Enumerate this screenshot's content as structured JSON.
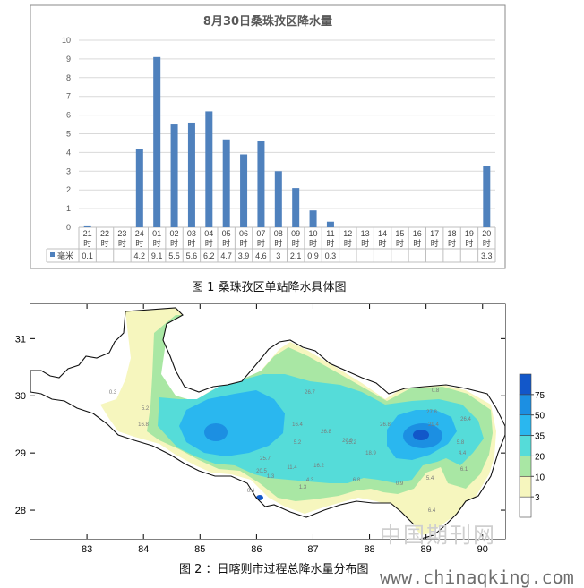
{
  "chart_data": [
    {
      "type": "bar",
      "title": "8月30日桑珠孜区降水量",
      "categories": [
        [
          "21",
          "时"
        ],
        [
          "22",
          "时"
        ],
        [
          "23",
          "时"
        ],
        [
          "24",
          "时"
        ],
        [
          "01",
          "时"
        ],
        [
          "02",
          "时"
        ],
        [
          "03",
          "时"
        ],
        [
          "04",
          "时"
        ],
        [
          "05",
          "时"
        ],
        [
          "06",
          "时"
        ],
        [
          "07",
          "时"
        ],
        [
          "08",
          "时"
        ],
        [
          "09",
          "时"
        ],
        [
          "10",
          "时"
        ],
        [
          "11",
          "时"
        ],
        [
          "12",
          "时"
        ],
        [
          "13",
          "时"
        ],
        [
          "14",
          "时"
        ],
        [
          "15",
          "时"
        ],
        [
          "16",
          "时"
        ],
        [
          "17",
          "时"
        ],
        [
          "18",
          "时"
        ],
        [
          "19",
          "时"
        ],
        [
          "20",
          "时"
        ]
      ],
      "series": [
        {
          "name": "毫米",
          "color": "#4f81bd",
          "values": [
            0.1,
            0,
            0,
            4.2,
            9.1,
            5.5,
            5.6,
            6.2,
            4.7,
            3.9,
            4.6,
            3,
            2.1,
            0.9,
            0.3,
            0,
            0,
            0,
            0,
            0,
            0,
            0,
            0,
            3.3
          ]
        }
      ],
      "table_values": [
        "0.1",
        "",
        "",
        "4.2",
        "9.1",
        "5.5",
        "5.6",
        "6.2",
        "4.7",
        "3.9",
        "4.6",
        "3",
        "2.1",
        "0.9",
        "0.3",
        "",
        "",
        "",
        "",
        "",
        "",
        "",
        "",
        "3.3"
      ],
      "ylim": [
        0,
        10
      ],
      "yticks": [
        "0",
        "1",
        "2",
        "3",
        "4",
        "5",
        "6",
        "7",
        "8",
        "9",
        "10"
      ],
      "grid": true
    },
    {
      "type": "heatmap",
      "xticks": [
        "83",
        "84",
        "85",
        "86",
        "87",
        "88",
        "89",
        "90"
      ],
      "yticks": [
        "28",
        "29",
        "30",
        "31"
      ],
      "xlim": [
        82,
        90.4
      ],
      "ylim": [
        27.5,
        31.6
      ],
      "colorbar": {
        "labels": [
          "3",
          "10",
          "20",
          "35",
          "50",
          "75"
        ],
        "colors": [
          "#ffffff",
          "#f6f6be",
          "#a9e7a4",
          "#55dcd9",
          "#2ab7ef",
          "#1c8fe2",
          "#1257c9"
        ]
      },
      "station_values": [
        "0.3",
        "5.2",
        "16.8",
        "26.7",
        "16.4",
        "26.8",
        "20.9",
        "26.8",
        "25.2",
        "18.9",
        "25.7",
        "5.2",
        "11.4",
        "16.2",
        "4.3",
        "6.8",
        "0.9",
        "5.4",
        "0.8",
        "6.1",
        "5.8",
        "4.4",
        "1.3",
        "0.4",
        "1.3",
        "26.4",
        "27.8",
        "29.4",
        "20.5",
        "6.4"
      ]
    }
  ],
  "captions": {
    "figure1": "图 1 桑珠孜区单站降水具体图",
    "figure2": "图 2 ：日喀则市过程总降水量分布图"
  },
  "watermark": {
    "line1": "中国期刊网",
    "line2": "www.chinaqking.com"
  }
}
